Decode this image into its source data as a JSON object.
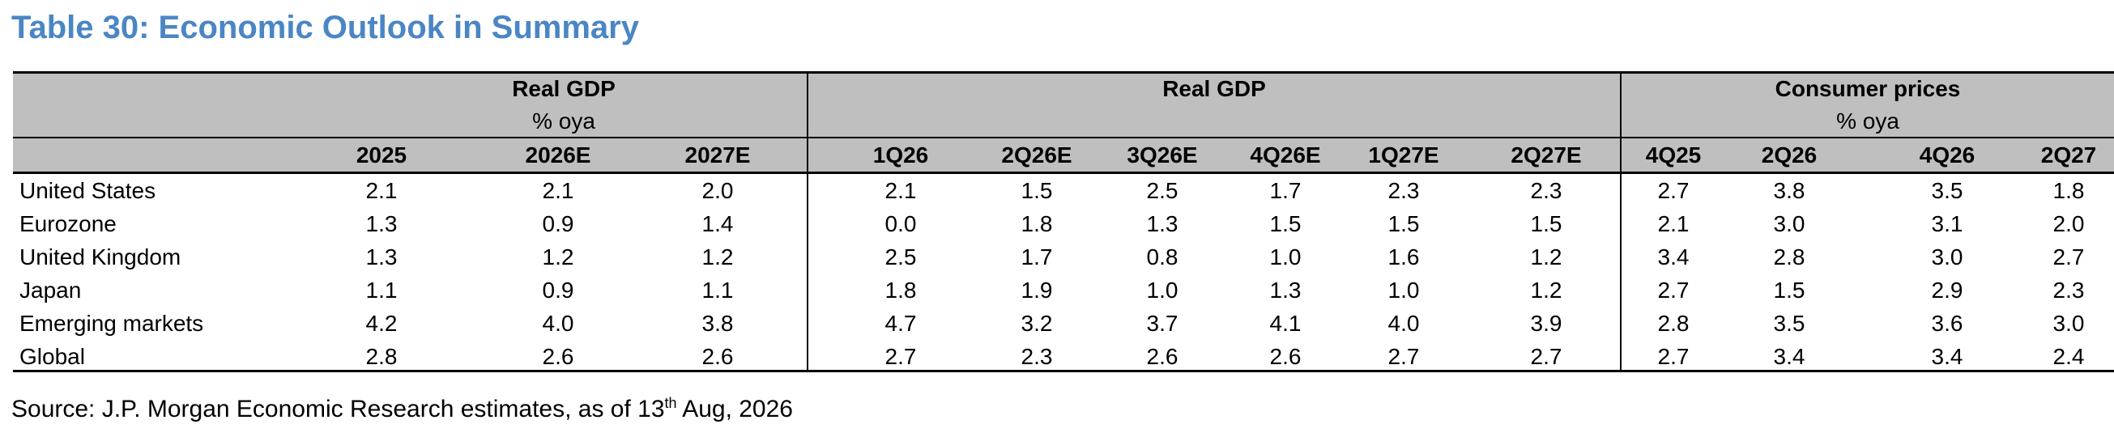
{
  "title": "Table 30: Economic Outlook in Summary",
  "groups": [
    {
      "title": "Real GDP",
      "subtitle": "% oya"
    },
    {
      "title": "Real GDP",
      "subtitle": ""
    },
    {
      "title": "Consumer prices",
      "subtitle": "% oya"
    }
  ],
  "columns": [
    "2025",
    "2026E",
    "2027E",
    "1Q26",
    "2Q26E",
    "3Q26E",
    "4Q26E",
    "1Q27E",
    "2Q27E",
    "4Q25",
    "2Q26",
    "4Q26",
    "2Q27"
  ],
  "rows": [
    {
      "label": "United States",
      "values": [
        "2.1",
        "2.1",
        "2.0",
        "2.1",
        "1.5",
        "2.5",
        "1.7",
        "2.3",
        "2.3",
        "2.7",
        "3.8",
        "3.5",
        "1.8"
      ]
    },
    {
      "label": "Eurozone",
      "values": [
        "1.3",
        "0.9",
        "1.4",
        "0.0",
        "1.8",
        "1.3",
        "1.5",
        "1.5",
        "1.5",
        "2.1",
        "3.0",
        "3.1",
        "2.0"
      ]
    },
    {
      "label": "United Kingdom",
      "values": [
        "1.3",
        "1.2",
        "1.2",
        "2.5",
        "1.7",
        "0.8",
        "1.0",
        "1.6",
        "1.2",
        "3.4",
        "2.8",
        "3.0",
        "2.7"
      ]
    },
    {
      "label": "Japan",
      "values": [
        "1.1",
        "0.9",
        "1.1",
        "1.8",
        "1.9",
        "1.0",
        "1.3",
        "1.0",
        "1.2",
        "2.7",
        "1.5",
        "2.9",
        "2.3"
      ]
    },
    {
      "label": "Emerging markets",
      "values": [
        "4.2",
        "4.0",
        "3.8",
        "4.7",
        "3.2",
        "3.7",
        "4.1",
        "4.0",
        "3.9",
        "2.8",
        "3.5",
        "3.6",
        "3.0"
      ]
    },
    {
      "label": "Global",
      "values": [
        "2.8",
        "2.6",
        "2.6",
        "2.7",
        "2.3",
        "2.6",
        "2.6",
        "2.7",
        "2.7",
        "2.7",
        "3.4",
        "3.4",
        "2.4"
      ]
    }
  ],
  "source": {
    "prefix": "Source: J.P. Morgan Economic Research estimates, as of 13",
    "sup": "th",
    "suffix": " Aug, 2026"
  }
}
